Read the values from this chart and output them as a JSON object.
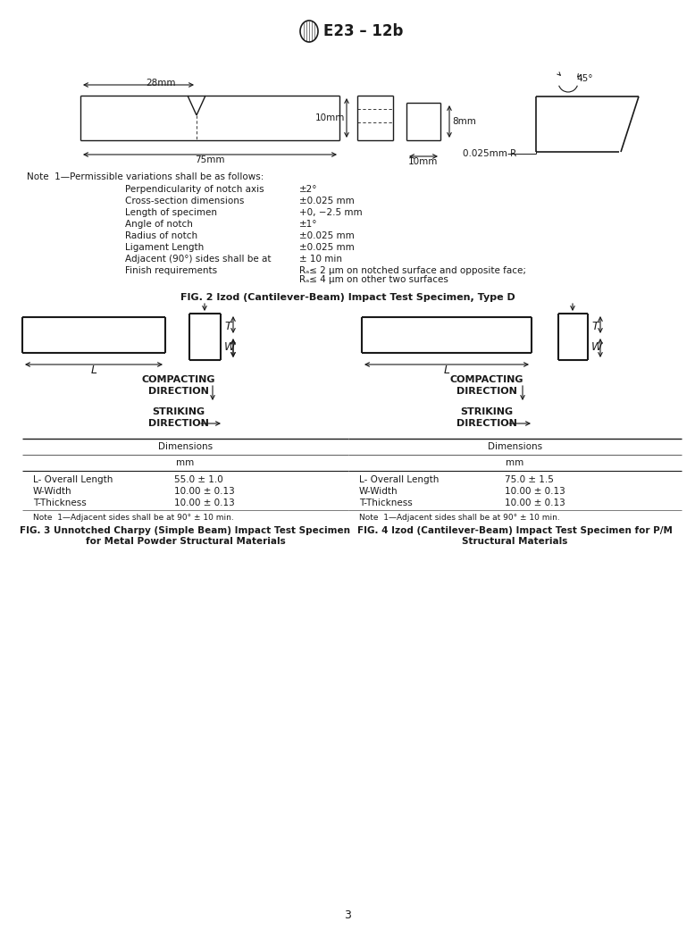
{
  "title": "E23 – 12b",
  "page_number": "3",
  "background": "#ffffff",
  "text_color": "#1a1a1a",
  "line_color": "#1a1a1a",
  "note1_label": "Note  1—Permissible variations shall be as follows:",
  "note1_items": [
    [
      "Perpendicularity of notch axis",
      "±2°"
    ],
    [
      "Cross-section dimensions",
      "±0.025 mm"
    ],
    [
      "Length of specimen",
      "+0, −2.5 mm"
    ],
    [
      "Angle of notch",
      "±1°"
    ],
    [
      "Radius of notch",
      "±0.025 mm"
    ],
    [
      "Ligament Length",
      "±0.025 mm"
    ],
    [
      "Adjacent (90°) sides shall be at",
      "± 10 min"
    ],
    [
      "Finish requirements",
      "Rₐ≤ 2 μm on notched surface and opposite face;"
    ]
  ],
  "finish_req_line2": "Rₐ≤ 4 μm on other two surfaces",
  "fig2_caption": "FIG. 2 Izod (Cantilever-Beam) Impact Test Specimen, Type D",
  "fig3_caption_line1": "FIG. 3 Unnotched Charpy (Simple Beam) Impact Test Specimen",
  "fig3_caption_line2": "for Metal Powder Structural Materials",
  "fig4_caption_line1": "FIG. 4 Izod (Cantilever-Beam) Impact Test Specimen for P/M",
  "fig4_caption_line2": "Structural Materials",
  "note3": "Note  1—Adjacent sides shall be at 90° ± 10 min.",
  "note4": "Note  1—Adjacent sides shall be at 90° ± 10 min.",
  "dim_header": "Dimensions",
  "dim_mm": "mm",
  "fig3_dims": [
    [
      "L- Overall Length",
      "55.0 ± 1.0"
    ],
    [
      "W-Width",
      "10.00 ± 0.13"
    ],
    [
      "T-Thickness",
      "10.00 ± 0.13"
    ]
  ],
  "fig4_dims": [
    [
      "L- Overall Length",
      "75.0 ± 1.5"
    ],
    [
      "W-Width",
      "10.00 ± 0.13"
    ],
    [
      "T-Thickness",
      "10.00 ± 0.13"
    ]
  ]
}
